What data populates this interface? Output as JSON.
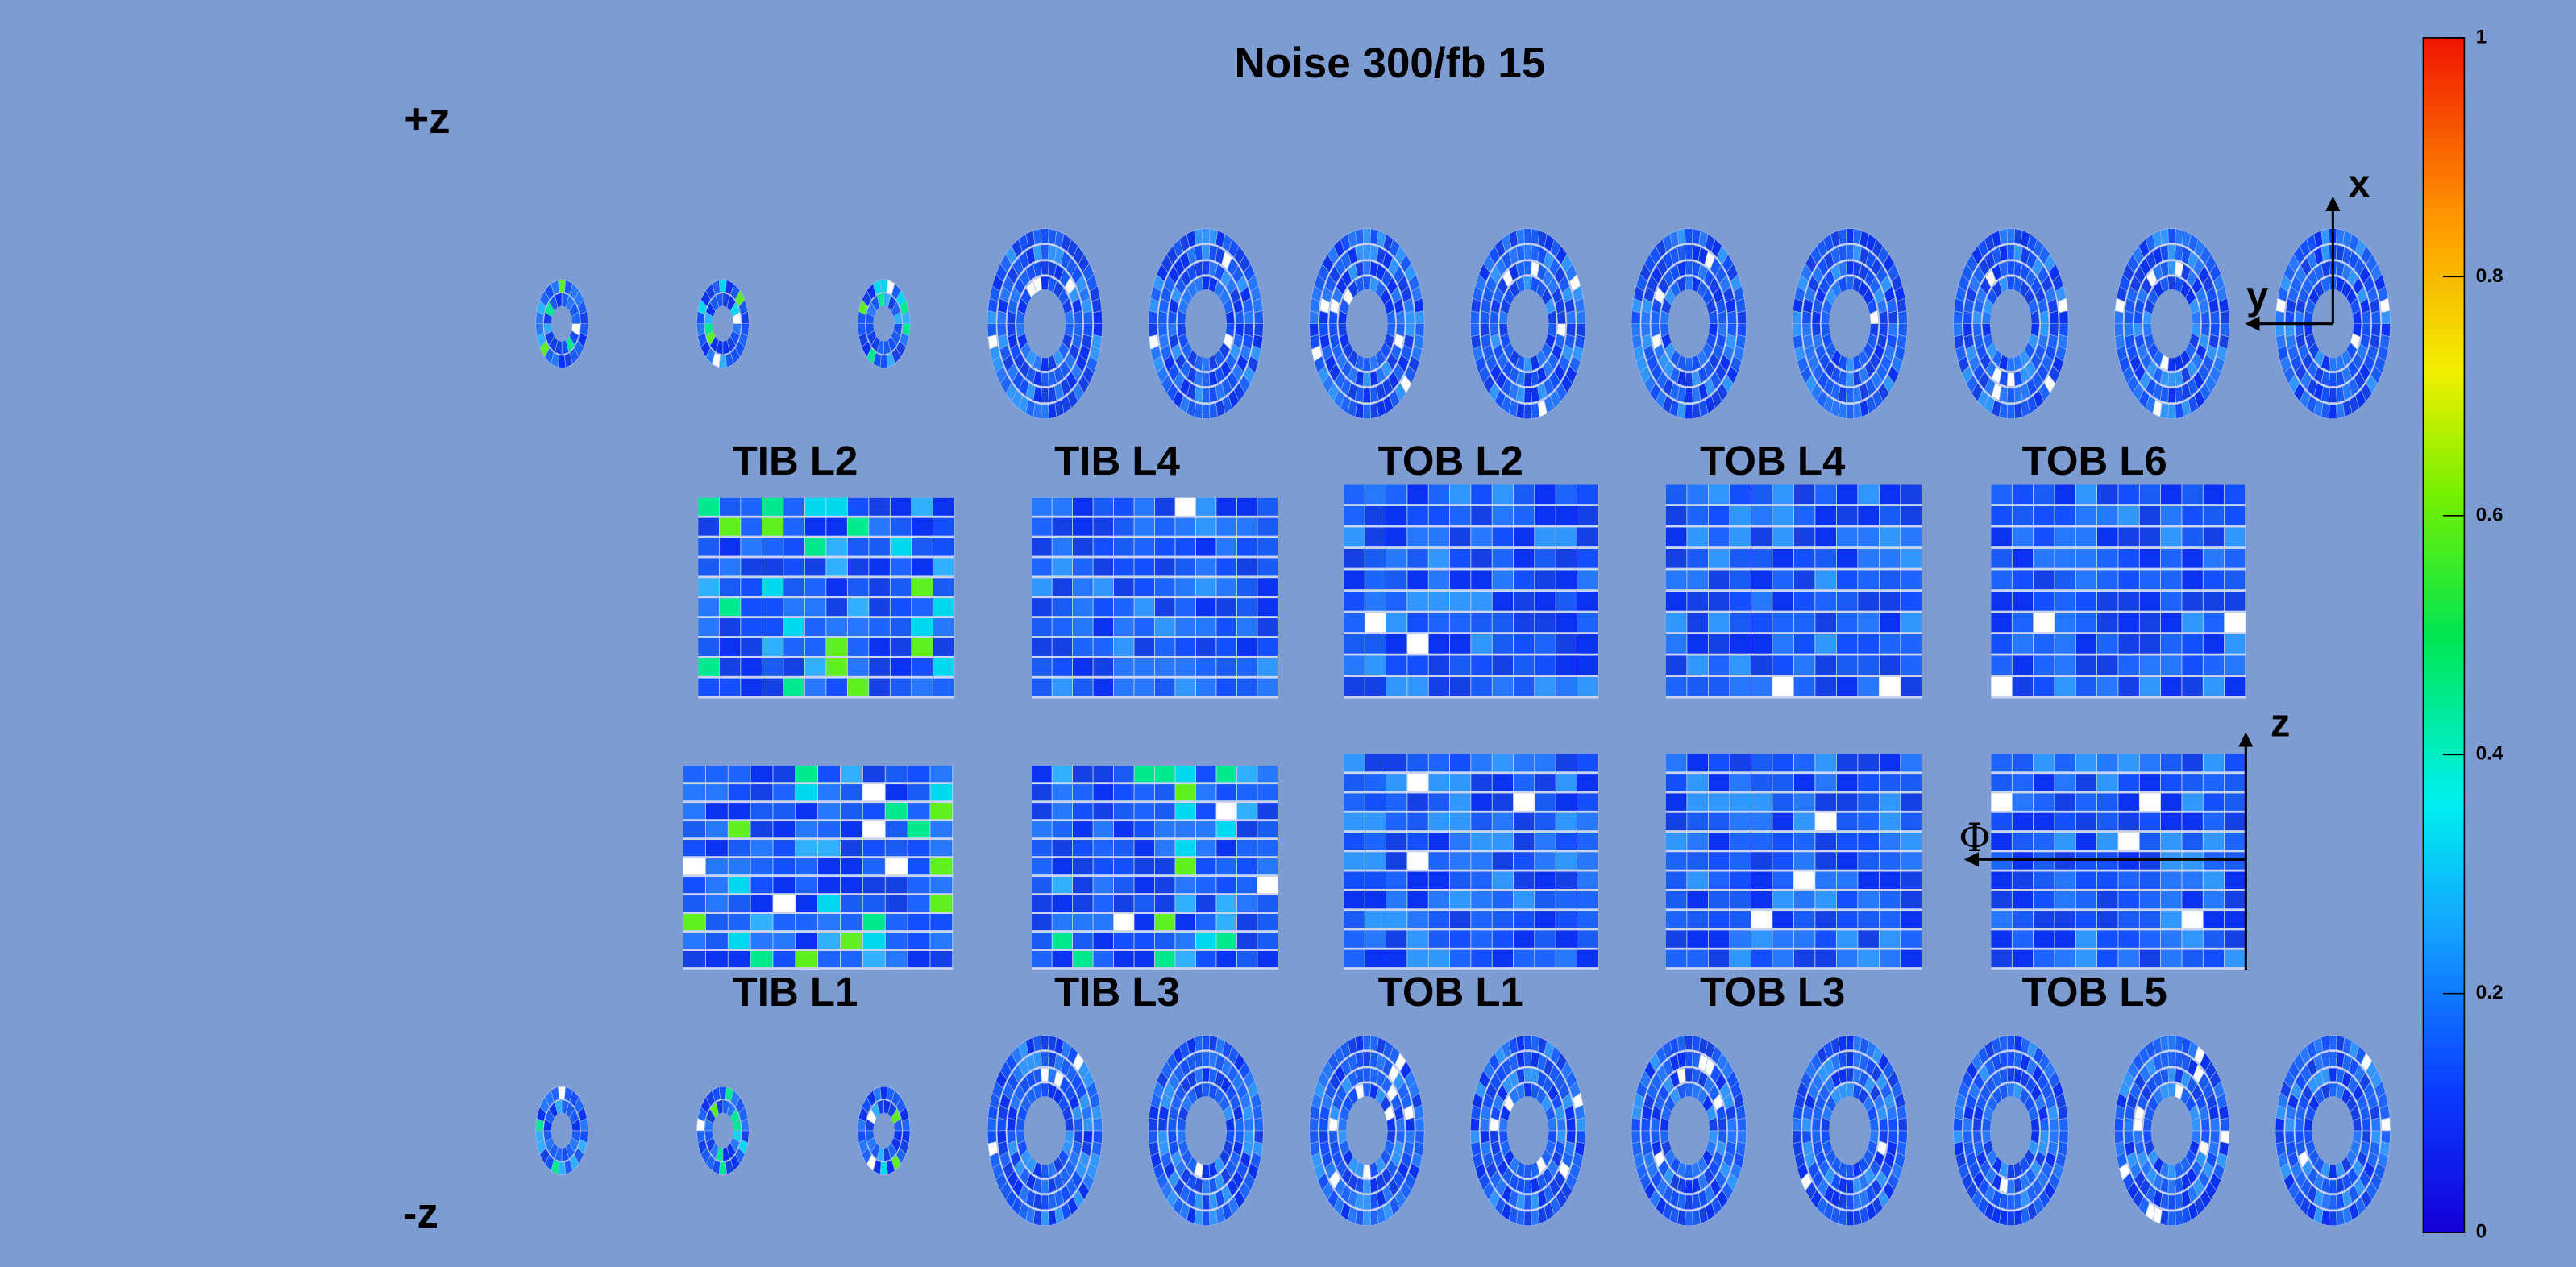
{
  "title": "Noise 300/fb 15",
  "side_labels": {
    "plus_z": "+z",
    "minus_z": "-z"
  },
  "panels_top": [
    "TIB L2",
    "TIB L4",
    "TOB L2",
    "TOB L4",
    "TOB L6"
  ],
  "panels_bottom": [
    "TIB L1",
    "TIB L3",
    "TOB L1",
    "TOB L3",
    "TOB L5"
  ],
  "axes": {
    "x": "x",
    "y": "y",
    "z": "z",
    "phi": "Φ"
  },
  "colorbar": {
    "range": [
      0,
      1
    ],
    "ticks": [
      0,
      0.2,
      0.4,
      0.6,
      0.8,
      1
    ]
  }
}
